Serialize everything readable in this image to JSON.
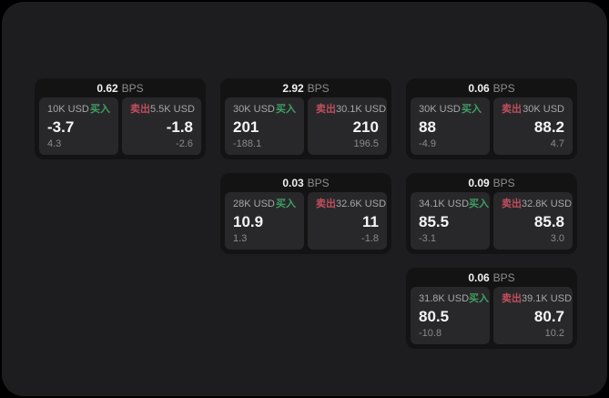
{
  "labels": {
    "buy": "买入",
    "sell": "卖出",
    "bps_unit": "BPS"
  },
  "colors": {
    "page_bg": "#000000",
    "surface_bg": "#1d1d1f",
    "card_bg": "#131314",
    "tile_bg": "#28282a",
    "buy_green": "#3f9e63",
    "sell_red": "#c04e5d"
  },
  "cards": [
    {
      "bps": "0.62",
      "buy": {
        "amount": "10K USD",
        "price": "-3.7",
        "sub": "4.3"
      },
      "sell": {
        "amount": "5.5K USD",
        "price": "-1.8",
        "sub": "-2.6"
      }
    },
    {
      "bps": "2.92",
      "buy": {
        "amount": "30K USD",
        "price": "201",
        "sub": "-188.1"
      },
      "sell": {
        "amount": "30.1K USD",
        "price": "210",
        "sub": "196.5"
      }
    },
    {
      "bps": "0.06",
      "buy": {
        "amount": "30K USD",
        "price": "88",
        "sub": "-4.9"
      },
      "sell": {
        "amount": "30K USD",
        "price": "88.2",
        "sub": "4.7"
      }
    },
    {
      "bps": "0.03",
      "buy": {
        "amount": "28K USD",
        "price": "10.9",
        "sub": "1.3"
      },
      "sell": {
        "amount": "32.6K USD",
        "price": "11",
        "sub": "-1.8"
      }
    },
    {
      "bps": "0.09",
      "buy": {
        "amount": "34.1K USD",
        "price": "85.5",
        "sub": "-3.1"
      },
      "sell": {
        "amount": "32.8K USD",
        "price": "85.8",
        "sub": "3.0"
      }
    },
    {
      "bps": "0.06",
      "buy": {
        "amount": "31.8K USD",
        "price": "80.5",
        "sub": "-10.8"
      },
      "sell": {
        "amount": "39.1K USD",
        "price": "80.7",
        "sub": "10.2"
      }
    }
  ]
}
